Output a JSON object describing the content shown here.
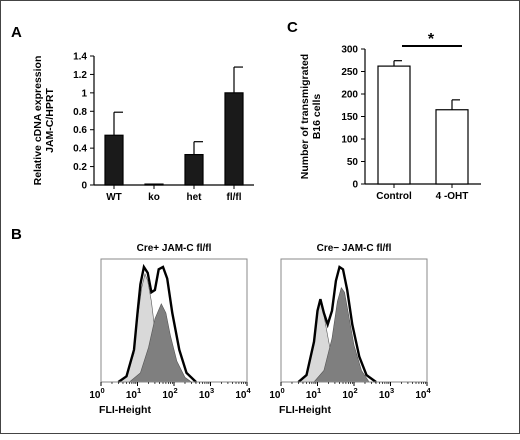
{
  "panels": {
    "A": {
      "letter": "A"
    },
    "B": {
      "letter": "B"
    },
    "C": {
      "letter": "C"
    }
  },
  "chart_data": [
    {
      "id": "A",
      "type": "bar",
      "categories": [
        "WT",
        "ko",
        "het",
        "fl/fl"
      ],
      "values": [
        0.54,
        0.01,
        0.33,
        1.0
      ],
      "errors": [
        0.25,
        0.0,
        0.14,
        0.28
      ],
      "ylabel_lines": [
        "Relative cDNA expression",
        "JAM-C/HPRT"
      ],
      "ylim": [
        0,
        1.4
      ],
      "yticks": [
        0,
        0.2,
        0.4,
        0.6,
        0.8,
        1,
        1.2,
        1.4
      ],
      "bar_color": "#1a1a1a"
    },
    {
      "id": "C",
      "type": "bar",
      "categories": [
        "Control",
        "4 -OHT"
      ],
      "values": [
        262,
        165
      ],
      "errors": [
        12,
        22
      ],
      "ylabel_lines": [
        "Number of transmigrated",
        "B16 cells"
      ],
      "ylim": [
        0,
        300
      ],
      "yticks": [
        0,
        50,
        100,
        150,
        200,
        250,
        300
      ],
      "bar_color": "#ffffff",
      "significance": "*"
    },
    {
      "id": "B1",
      "type": "area",
      "title": "Cre+ JAM-C fl/fl",
      "xlabel": "FLI-Height",
      "xscale": "log",
      "xlim": [
        1,
        10000
      ],
      "xtick_exponents": [
        "0",
        "1",
        "2",
        "3",
        "4"
      ],
      "series": [
        {
          "fill": "#d9d9d9",
          "points": [
            [
              3,
              0
            ],
            [
              5,
              0.05
            ],
            [
              8,
              0.25
            ],
            [
              10,
              0.55
            ],
            [
              13,
              0.82
            ],
            [
              16,
              0.94
            ],
            [
              19,
              0.88
            ],
            [
              24,
              0.7
            ],
            [
              30,
              0.45
            ],
            [
              40,
              0.2
            ],
            [
              60,
              0.07
            ],
            [
              90,
              0
            ]
          ]
        },
        {
          "fill": "#7f7f7f",
          "points": [
            [
              6,
              0
            ],
            [
              12,
              0.08
            ],
            [
              20,
              0.3
            ],
            [
              30,
              0.55
            ],
            [
              45,
              0.68
            ],
            [
              60,
              0.6
            ],
            [
              80,
              0.4
            ],
            [
              120,
              0.18
            ],
            [
              200,
              0.04
            ],
            [
              300,
              0
            ]
          ]
        },
        {
          "fill": "none",
          "points": [
            [
              3,
              0
            ],
            [
              5,
              0.05
            ],
            [
              8,
              0.28
            ],
            [
              10,
              0.6
            ],
            [
              12,
              0.85
            ],
            [
              15,
              1.0
            ],
            [
              19,
              0.95
            ],
            [
              24,
              0.78
            ],
            [
              30,
              0.8
            ],
            [
              38,
              0.98
            ],
            [
              50,
              1.0
            ],
            [
              65,
              0.9
            ],
            [
              90,
              0.6
            ],
            [
              140,
              0.28
            ],
            [
              220,
              0.08
            ],
            [
              400,
              0
            ]
          ]
        }
      ]
    },
    {
      "id": "B2",
      "type": "area",
      "title": "Cre− JAM-C fl/fl",
      "xlabel": "FLI-Height",
      "xscale": "log",
      "xlim": [
        1,
        10000
      ],
      "xtick_exponents": [
        "0",
        "1",
        "2",
        "3",
        "4"
      ],
      "series": [
        {
          "fill": "#d9d9d9",
          "points": [
            [
              3,
              0
            ],
            [
              5,
              0.06
            ],
            [
              8,
              0.35
            ],
            [
              10,
              0.62
            ],
            [
              12,
              0.7
            ],
            [
              15,
              0.58
            ],
            [
              19,
              0.4
            ],
            [
              25,
              0.2
            ],
            [
              35,
              0.08
            ],
            [
              60,
              0
            ]
          ]
        },
        {
          "fill": "#7f7f7f",
          "points": [
            [
              8,
              0
            ],
            [
              15,
              0.1
            ],
            [
              25,
              0.38
            ],
            [
              35,
              0.7
            ],
            [
              45,
              0.82
            ],
            [
              55,
              0.78
            ],
            [
              70,
              0.6
            ],
            [
              100,
              0.32
            ],
            [
              160,
              0.1
            ],
            [
              260,
              0
            ]
          ]
        },
        {
          "fill": "none",
          "points": [
            [
              3,
              0
            ],
            [
              5,
              0.06
            ],
            [
              8,
              0.35
            ],
            [
              10,
              0.62
            ],
            [
              12,
              0.72
            ],
            [
              15,
              0.6
            ],
            [
              19,
              0.5
            ],
            [
              25,
              0.62
            ],
            [
              32,
              0.88
            ],
            [
              40,
              1.0
            ],
            [
              50,
              0.98
            ],
            [
              65,
              0.8
            ],
            [
              90,
              0.5
            ],
            [
              140,
              0.22
            ],
            [
              220,
              0.06
            ],
            [
              400,
              0
            ]
          ]
        }
      ]
    }
  ]
}
